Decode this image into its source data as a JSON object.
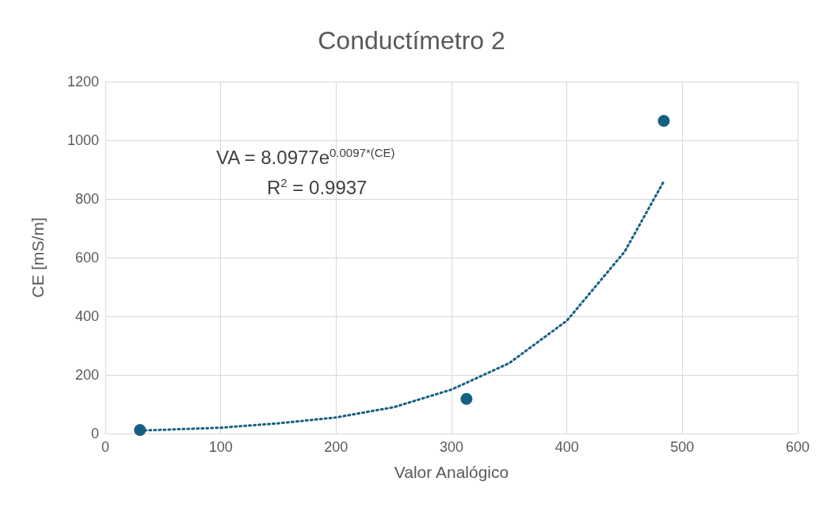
{
  "chart_data": {
    "type": "scatter",
    "title": "Conductímetro 2",
    "xlabel": "Valor Analógico",
    "ylabel": "CE [mS/m]",
    "annotations": [
      "VA = 8.0977e$^{0.0097*(CE)}$",
      "R$^{2}$ = 0.9937"
    ],
    "series": [
      {
        "color": "#156082",
        "x": [
          30,
          313,
          484
        ],
        "values": [
          12,
          118,
          1066
        ],
        "marker": "circle"
      },
      {
        "type": "line",
        "color": "#156082",
        "line_style": "dotted",
        "marker": "none",
        "x": [
          30,
          100,
          150,
          200,
          250,
          300,
          350,
          400,
          450,
          484
        ],
        "values": [
          10,
          20,
          35,
          55,
          90,
          150,
          240,
          385,
          620,
          860
        ]
      }
    ],
    "xlim": [
      0,
      600
    ],
    "xticks": [
      0,
      100,
      200,
      300,
      400,
      500,
      600
    ],
    "ylim": [
      0,
      1200
    ],
    "yticks": [
      0,
      200,
      400,
      600,
      800,
      1000,
      1200
    ],
    "grid": true
  }
}
